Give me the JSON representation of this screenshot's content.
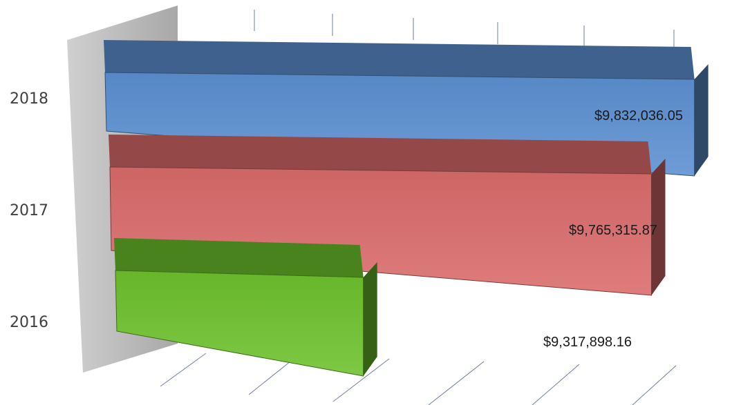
{
  "chart_data": {
    "type": "bar",
    "orientation": "horizontal",
    "style": "3d",
    "categories": [
      "2018",
      "2017",
      "2016"
    ],
    "values": [
      9832036.05,
      9765315.87,
      9317898.16
    ],
    "data_labels": [
      "$9,832,036.05",
      "$9,765,315.87",
      "$9,317,898.16"
    ],
    "colors": [
      "#5b8fd0",
      "#d96a6a",
      "#6cc02c"
    ],
    "title": "",
    "xlabel": "",
    "ylabel": "",
    "grid": true,
    "legend": "none"
  }
}
